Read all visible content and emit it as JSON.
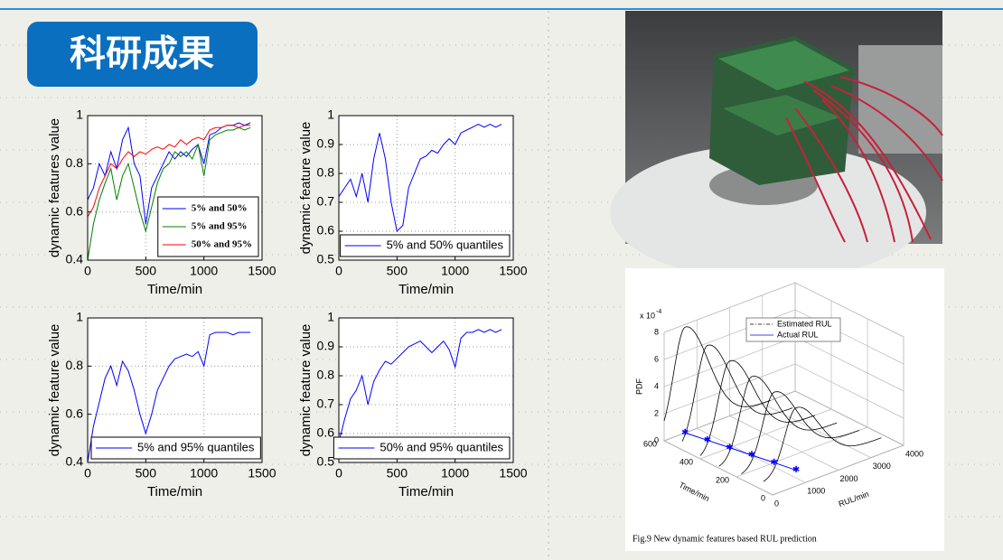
{
  "header": {
    "title": "科研成果"
  },
  "chart_data": [
    {
      "type": "line",
      "xlabel": "Time/min",
      "ylabel": "dynamic features value",
      "x": [
        0,
        50,
        100,
        150,
        200,
        250,
        300,
        350,
        400,
        450,
        500,
        550,
        600,
        650,
        700,
        750,
        800,
        850,
        900,
        950,
        1000,
        1050,
        1100,
        1150,
        1200,
        1250,
        1300,
        1350,
        1400
      ],
      "series": [
        {
          "name": "5% and 50%",
          "color": "#0000ff",
          "values": [
            0.65,
            0.7,
            0.8,
            0.75,
            0.85,
            0.78,
            0.9,
            0.95,
            0.8,
            0.75,
            0.55,
            0.7,
            0.75,
            0.8,
            0.85,
            0.82,
            0.85,
            0.83,
            0.86,
            0.88,
            0.8,
            0.92,
            0.93,
            0.95,
            0.96,
            0.96,
            0.97,
            0.96,
            0.97
          ]
        },
        {
          "name": "5% and 95%",
          "color": "#008000",
          "values": [
            0.4,
            0.55,
            0.65,
            0.72,
            0.78,
            0.65,
            0.75,
            0.8,
            0.7,
            0.6,
            0.52,
            0.62,
            0.72,
            0.78,
            0.8,
            0.85,
            0.83,
            0.85,
            0.82,
            0.88,
            0.75,
            0.9,
            0.92,
            0.93,
            0.94,
            0.94,
            0.95,
            0.94,
            0.95
          ]
        },
        {
          "name": "50% and 95%",
          "color": "#ff0000",
          "values": [
            0.58,
            0.62,
            0.7,
            0.75,
            0.8,
            0.78,
            0.82,
            0.85,
            0.83,
            0.85,
            0.84,
            0.86,
            0.87,
            0.86,
            0.88,
            0.87,
            0.9,
            0.88,
            0.9,
            0.91,
            0.9,
            0.94,
            0.95,
            0.95,
            0.96,
            0.96,
            0.95,
            0.96,
            0.96
          ]
        }
      ],
      "xlim": [
        0,
        1500
      ],
      "xticks": [
        0,
        500,
        1000,
        1500
      ],
      "ylim": [
        0.4,
        1
      ],
      "yticks": [
        0.4,
        0.6,
        0.8,
        1
      ],
      "grid": true,
      "legend": "lower right"
    },
    {
      "type": "line",
      "xlabel": "Time/min",
      "ylabel": "dynamic feature value",
      "x": [
        0,
        50,
        100,
        150,
        200,
        250,
        300,
        350,
        400,
        450,
        500,
        550,
        600,
        650,
        700,
        750,
        800,
        850,
        900,
        950,
        1000,
        1050,
        1100,
        1150,
        1200,
        1250,
        1300,
        1350,
        1400
      ],
      "series": [
        {
          "name": "5% and 50% quantiles",
          "color": "#0000ff",
          "values": [
            0.72,
            0.75,
            0.78,
            0.72,
            0.8,
            0.7,
            0.85,
            0.94,
            0.85,
            0.7,
            0.6,
            0.62,
            0.75,
            0.8,
            0.85,
            0.86,
            0.88,
            0.87,
            0.9,
            0.92,
            0.9,
            0.94,
            0.95,
            0.96,
            0.97,
            0.96,
            0.97,
            0.96,
            0.97
          ]
        }
      ],
      "xlim": [
        0,
        1500
      ],
      "xticks": [
        0,
        500,
        1000,
        1500
      ],
      "ylim": [
        0.5,
        1
      ],
      "yticks": [
        0.5,
        0.6,
        0.7,
        0.8,
        0.9,
        1
      ],
      "grid": true,
      "legend": "lower right"
    },
    {
      "type": "line",
      "xlabel": "Time/min",
      "ylabel": "dynamic feature value",
      "x": [
        0,
        50,
        100,
        150,
        200,
        250,
        300,
        350,
        400,
        450,
        500,
        550,
        600,
        650,
        700,
        750,
        800,
        850,
        900,
        950,
        1000,
        1050,
        1100,
        1150,
        1200,
        1250,
        1300,
        1350,
        1400
      ],
      "series": [
        {
          "name": "5% and 95% quantiles",
          "color": "#0000ff",
          "values": [
            0.4,
            0.55,
            0.65,
            0.75,
            0.8,
            0.72,
            0.82,
            0.78,
            0.7,
            0.6,
            0.52,
            0.6,
            0.7,
            0.75,
            0.8,
            0.83,
            0.84,
            0.85,
            0.84,
            0.86,
            0.8,
            0.93,
            0.94,
            0.94,
            0.94,
            0.93,
            0.94,
            0.94,
            0.94
          ]
        }
      ],
      "xlim": [
        0,
        1500
      ],
      "xticks": [
        0,
        500,
        1000,
        1500
      ],
      "ylim": [
        0.4,
        1
      ],
      "yticks": [
        0.4,
        0.6,
        0.8,
        1
      ],
      "grid": true,
      "legend": "lower left"
    },
    {
      "type": "line",
      "xlabel": "Time/min",
      "ylabel": "dynamic feature value",
      "x": [
        0,
        50,
        100,
        150,
        200,
        250,
        300,
        350,
        400,
        450,
        500,
        550,
        600,
        650,
        700,
        750,
        800,
        850,
        900,
        950,
        1000,
        1050,
        1100,
        1150,
        1200,
        1250,
        1300,
        1350,
        1400
      ],
      "series": [
        {
          "name": "50% and 95% quantiles",
          "color": "#0000ff",
          "values": [
            0.57,
            0.65,
            0.72,
            0.75,
            0.8,
            0.7,
            0.78,
            0.82,
            0.85,
            0.84,
            0.86,
            0.88,
            0.9,
            0.91,
            0.92,
            0.9,
            0.88,
            0.9,
            0.92,
            0.89,
            0.83,
            0.93,
            0.95,
            0.95,
            0.96,
            0.95,
            0.96,
            0.95,
            0.96
          ]
        }
      ],
      "xlim": [
        0,
        1500
      ],
      "xticks": [
        0,
        500,
        1000,
        1500
      ],
      "ylim": [
        0.5,
        1
      ],
      "yticks": [
        0.5,
        0.6,
        0.7,
        0.8,
        0.9,
        1
      ],
      "grid": true,
      "legend": "lower right"
    },
    {
      "type": "pdf3d",
      "scale_label": "x 10",
      "scale_exponent": "-4",
      "zlabel": "PDF",
      "xlabel": "Time/min",
      "ylabel": "RUL/min",
      "xlim": [
        0,
        600
      ],
      "xticks": [
        0,
        200,
        400,
        600
      ],
      "ylim": [
        0,
        4000
      ],
      "yticks": [
        0,
        1000,
        2000,
        3000,
        4000
      ],
      "zlim": [
        0,
        8
      ],
      "zticks": [
        0,
        2,
        4,
        6,
        8
      ],
      "series": [
        {
          "name": "Estimated RUL",
          "color": "#000000",
          "x": [
            600,
            500,
            400,
            300,
            200,
            100
          ],
          "values": [
            640,
            770,
            900,
            1020,
            1150,
            1270
          ],
          "peaks": [
            7.8,
            7,
            6.4,
            5.8,
            5.2,
            4.6
          ]
        },
        {
          "name": "Actual RUL",
          "color": "#0000ff",
          "x": [
            600,
            500,
            400,
            300,
            200,
            100
          ],
          "values": [
            640,
            770,
            900,
            1020,
            1150,
            1270
          ]
        }
      ],
      "caption": "Fig.9 New dynamic features based RUL prediction"
    }
  ]
}
